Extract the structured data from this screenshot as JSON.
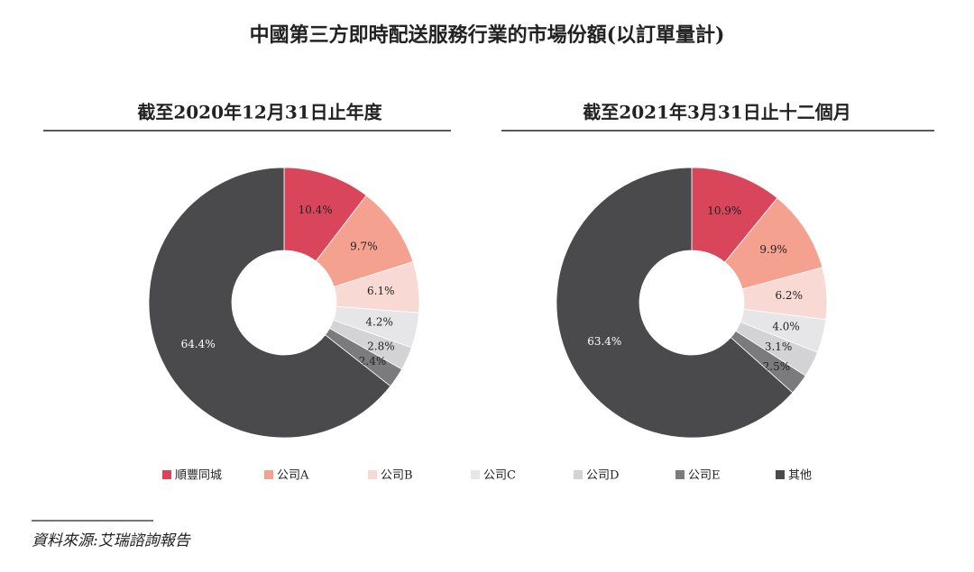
{
  "title": "中國第三方即時配送服務行業的市場份額(以訂單量計)",
  "source": "資料來源:艾瑞諮詢報告",
  "chart_data": [
    {
      "type": "pie",
      "title": "截至2020年12月31日止年度",
      "categories": [
        "順豐同城",
        "公司A",
        "公司B",
        "公司C",
        "公司D",
        "公司E",
        "其他"
      ],
      "colors": [
        "#d9465b",
        "#f4a18f",
        "#f8d9d4",
        "#e6e6e8",
        "#d3d3d5",
        "#7b7b7d",
        "#4a4a4c"
      ],
      "values": [
        10.4,
        9.7,
        6.1,
        4.2,
        2.8,
        2.4,
        64.4
      ],
      "value_labels": [
        "10.4%",
        "9.7%",
        "6.1%",
        "4.2%",
        "2.8%",
        "2.4%",
        "64.4%"
      ]
    },
    {
      "type": "pie",
      "title": "截至2021年3月31日止十二個月",
      "categories": [
        "順豐同城",
        "公司A",
        "公司B",
        "公司C",
        "公司D",
        "公司E",
        "其他"
      ],
      "colors": [
        "#d9465b",
        "#f4a18f",
        "#f8d9d4",
        "#e6e6e8",
        "#d3d3d5",
        "#7b7b7d",
        "#4a4a4c"
      ],
      "values": [
        10.9,
        9.9,
        6.2,
        4.0,
        3.1,
        2.5,
        63.4
      ],
      "value_labels": [
        "10.9%",
        "9.9%",
        "6.2%",
        "4.0%",
        "3.1%",
        "2.5%",
        "63.4%"
      ]
    }
  ]
}
